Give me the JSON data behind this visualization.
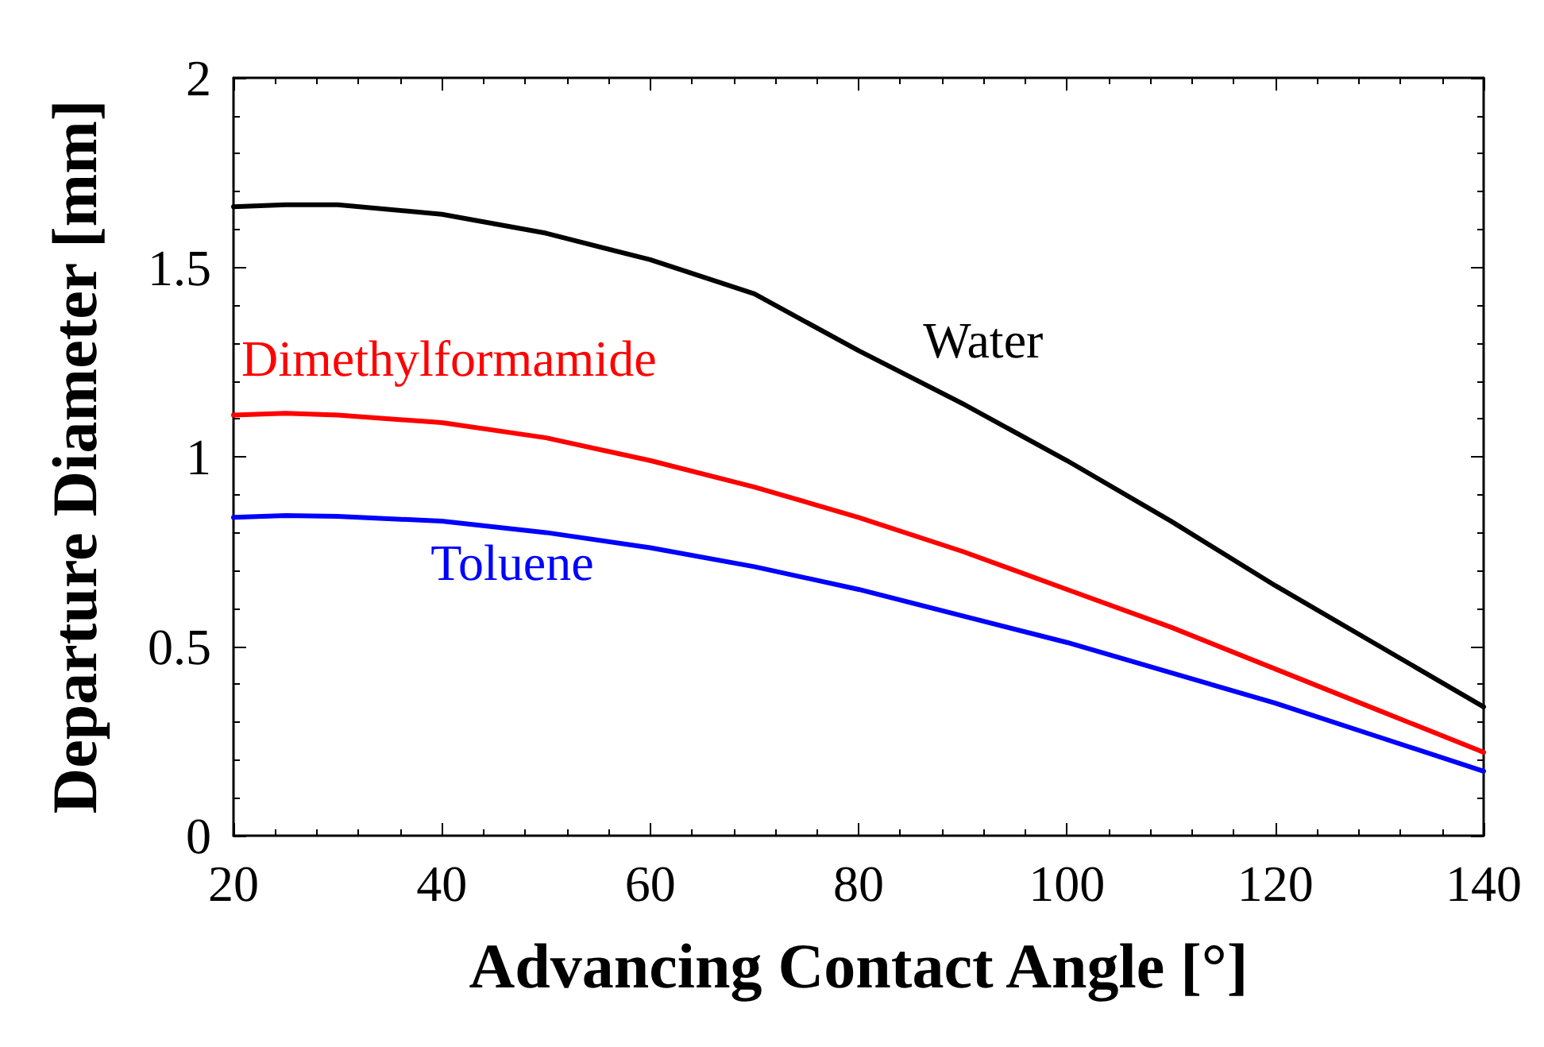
{
  "chart_data": {
    "type": "line",
    "xlabel": "Advancing Contact Angle [°]",
    "ylabel": "Departure Diameter [mm]",
    "xlim": [
      20,
      140
    ],
    "xticks": [
      20,
      40,
      60,
      80,
      100,
      120,
      140
    ],
    "ylim": [
      0,
      2
    ],
    "yticks": [
      0,
      0.5,
      1,
      1.5,
      2
    ],
    "grid": false,
    "marker": "none",
    "line_style": "solid",
    "series": [
      {
        "name": "Water",
        "color": "#000000",
        "x": [
          20,
          25,
          30,
          40,
          50,
          60,
          70,
          80,
          90,
          100,
          110,
          120,
          130,
          140
        ],
        "values": [
          1.66,
          1.665,
          1.665,
          1.64,
          1.59,
          1.52,
          1.43,
          1.28,
          1.14,
          0.99,
          0.83,
          0.66,
          0.5,
          0.34
        ]
      },
      {
        "name": "Dimethylformamide",
        "color": "#ff0000",
        "x": [
          20,
          25,
          30,
          40,
          50,
          60,
          70,
          80,
          90,
          100,
          110,
          120,
          130,
          140
        ],
        "values": [
          1.11,
          1.115,
          1.11,
          1.09,
          1.05,
          0.99,
          0.92,
          0.84,
          0.75,
          0.65,
          0.55,
          0.44,
          0.33,
          0.22
        ]
      },
      {
        "name": "Toluene",
        "color": "#0000ff",
        "x": [
          20,
          25,
          30,
          40,
          50,
          60,
          70,
          80,
          90,
          100,
          110,
          120,
          130,
          140
        ],
        "values": [
          0.84,
          0.845,
          0.843,
          0.83,
          0.8,
          0.76,
          0.71,
          0.65,
          0.58,
          0.51,
          0.43,
          0.35,
          0.26,
          0.17
        ]
      }
    ]
  }
}
